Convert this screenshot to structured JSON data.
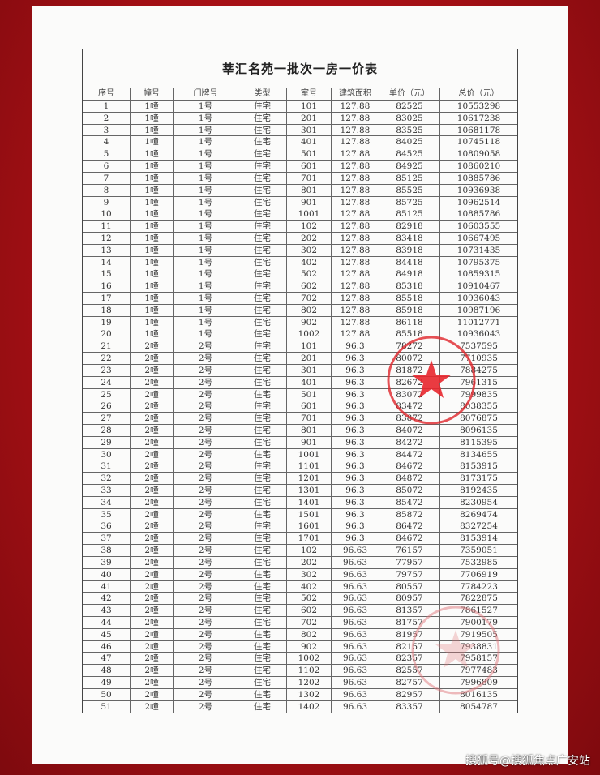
{
  "document": {
    "title": "莘汇名苑一批次一房一价表",
    "columns": [
      "序号",
      "幢号",
      "门牌号",
      "类型",
      "室号",
      "建筑面积",
      "单价（元）",
      "总价（元）"
    ],
    "rows": [
      [
        "1",
        "1幢",
        "1号",
        "住宅",
        "101",
        "127.88",
        "82525",
        "10553298"
      ],
      [
        "2",
        "1幢",
        "1号",
        "住宅",
        "201",
        "127.88",
        "83025",
        "10617238"
      ],
      [
        "3",
        "1幢",
        "1号",
        "住宅",
        "301",
        "127.88",
        "83525",
        "10681178"
      ],
      [
        "4",
        "1幢",
        "1号",
        "住宅",
        "401",
        "127.88",
        "84025",
        "10745118"
      ],
      [
        "5",
        "1幢",
        "1号",
        "住宅",
        "501",
        "127.88",
        "84525",
        "10809058"
      ],
      [
        "6",
        "1幢",
        "1号",
        "住宅",
        "601",
        "127.88",
        "84925",
        "10860210"
      ],
      [
        "7",
        "1幢",
        "1号",
        "住宅",
        "701",
        "127.88",
        "85125",
        "10885786"
      ],
      [
        "8",
        "1幢",
        "1号",
        "住宅",
        "801",
        "127.88",
        "85525",
        "10936938"
      ],
      [
        "9",
        "1幢",
        "1号",
        "住宅",
        "901",
        "127.88",
        "85725",
        "10962514"
      ],
      [
        "10",
        "1幢",
        "1号",
        "住宅",
        "1001",
        "127.88",
        "85125",
        "10885786"
      ],
      [
        "11",
        "1幢",
        "1号",
        "住宅",
        "102",
        "127.88",
        "82918",
        "10603555"
      ],
      [
        "12",
        "1幢",
        "1号",
        "住宅",
        "202",
        "127.88",
        "83418",
        "10667495"
      ],
      [
        "13",
        "1幢",
        "1号",
        "住宅",
        "302",
        "127.88",
        "83918",
        "10731435"
      ],
      [
        "14",
        "1幢",
        "1号",
        "住宅",
        "402",
        "127.88",
        "84418",
        "10795375"
      ],
      [
        "15",
        "1幢",
        "1号",
        "住宅",
        "502",
        "127.88",
        "84918",
        "10859315"
      ],
      [
        "16",
        "1幢",
        "1号",
        "住宅",
        "602",
        "127.88",
        "85318",
        "10910467"
      ],
      [
        "17",
        "1幢",
        "1号",
        "住宅",
        "702",
        "127.88",
        "85518",
        "10936043"
      ],
      [
        "18",
        "1幢",
        "1号",
        "住宅",
        "802",
        "127.88",
        "85918",
        "10987196"
      ],
      [
        "19",
        "1幢",
        "1号",
        "住宅",
        "902",
        "127.88",
        "86118",
        "11012771"
      ],
      [
        "20",
        "1幢",
        "1号",
        "住宅",
        "1002",
        "127.88",
        "85518",
        "10936043"
      ],
      [
        "21",
        "2幢",
        "2号",
        "住宅",
        "101",
        "96.3",
        "78272",
        "7537595"
      ],
      [
        "22",
        "2幢",
        "2号",
        "住宅",
        "201",
        "96.3",
        "80072",
        "7710935"
      ],
      [
        "23",
        "2幢",
        "2号",
        "住宅",
        "301",
        "96.3",
        "81872",
        "7884275"
      ],
      [
        "24",
        "2幢",
        "2号",
        "住宅",
        "401",
        "96.3",
        "82672",
        "7961315"
      ],
      [
        "25",
        "2幢",
        "2号",
        "住宅",
        "501",
        "96.3",
        "83072",
        "7999835"
      ],
      [
        "26",
        "2幢",
        "2号",
        "住宅",
        "601",
        "96.3",
        "83472",
        "8038355"
      ],
      [
        "27",
        "2幢",
        "2号",
        "住宅",
        "701",
        "96.3",
        "83872",
        "8076875"
      ],
      [
        "28",
        "2幢",
        "2号",
        "住宅",
        "801",
        "96.3",
        "84072",
        "8096135"
      ],
      [
        "29",
        "2幢",
        "2号",
        "住宅",
        "901",
        "96.3",
        "84272",
        "8115395"
      ],
      [
        "30",
        "2幢",
        "2号",
        "住宅",
        "1001",
        "96.3",
        "84472",
        "8134655"
      ],
      [
        "31",
        "2幢",
        "2号",
        "住宅",
        "1101",
        "96.3",
        "84672",
        "8153915"
      ],
      [
        "32",
        "2幢",
        "2号",
        "住宅",
        "1201",
        "96.3",
        "84872",
        "8173175"
      ],
      [
        "33",
        "2幢",
        "2号",
        "住宅",
        "1301",
        "96.3",
        "85072",
        "8192435"
      ],
      [
        "34",
        "2幢",
        "2号",
        "住宅",
        "1401",
        "96.3",
        "85472",
        "8230954"
      ],
      [
        "35",
        "2幢",
        "2号",
        "住宅",
        "1501",
        "96.3",
        "85872",
        "8269474"
      ],
      [
        "36",
        "2幢",
        "2号",
        "住宅",
        "1601",
        "96.3",
        "86472",
        "8327254"
      ],
      [
        "37",
        "2幢",
        "2号",
        "住宅",
        "1701",
        "96.3",
        "84672",
        "8153914"
      ],
      [
        "38",
        "2幢",
        "2号",
        "住宅",
        "102",
        "96.63",
        "76157",
        "7359051"
      ],
      [
        "39",
        "2幢",
        "2号",
        "住宅",
        "202",
        "96.63",
        "77957",
        "7532985"
      ],
      [
        "40",
        "2幢",
        "2号",
        "住宅",
        "302",
        "96.63",
        "79757",
        "7706919"
      ],
      [
        "41",
        "2幢",
        "2号",
        "住宅",
        "402",
        "96.63",
        "80557",
        "7784223"
      ],
      [
        "42",
        "2幢",
        "2号",
        "住宅",
        "502",
        "96.63",
        "80957",
        "7822875"
      ],
      [
        "43",
        "2幢",
        "2号",
        "住宅",
        "602",
        "96.63",
        "81357",
        "7861527"
      ],
      [
        "44",
        "2幢",
        "2号",
        "住宅",
        "702",
        "96.63",
        "81757",
        "7900179"
      ],
      [
        "45",
        "2幢",
        "2号",
        "住宅",
        "802",
        "96.63",
        "81957",
        "7919505"
      ],
      [
        "46",
        "2幢",
        "2号",
        "住宅",
        "902",
        "96.63",
        "82157",
        "7938831"
      ],
      [
        "47",
        "2幢",
        "2号",
        "住宅",
        "1002",
        "96.63",
        "82357",
        "7958157"
      ],
      [
        "48",
        "2幢",
        "2号",
        "住宅",
        "1102",
        "96.63",
        "82557",
        "7977483"
      ],
      [
        "49",
        "2幢",
        "2号",
        "住宅",
        "1202",
        "96.63",
        "82757",
        "7996809"
      ],
      [
        "50",
        "2幢",
        "2号",
        "住宅",
        "1302",
        "96.63",
        "82957",
        "8016135"
      ],
      [
        "51",
        "2幢",
        "2号",
        "住宅",
        "1402",
        "96.63",
        "83357",
        "8054787"
      ]
    ]
  },
  "watermark": "搜狐号@搜狐焦点广安站",
  "colors": {
    "frame": "#a10f14",
    "stamp": "#e0252b"
  }
}
